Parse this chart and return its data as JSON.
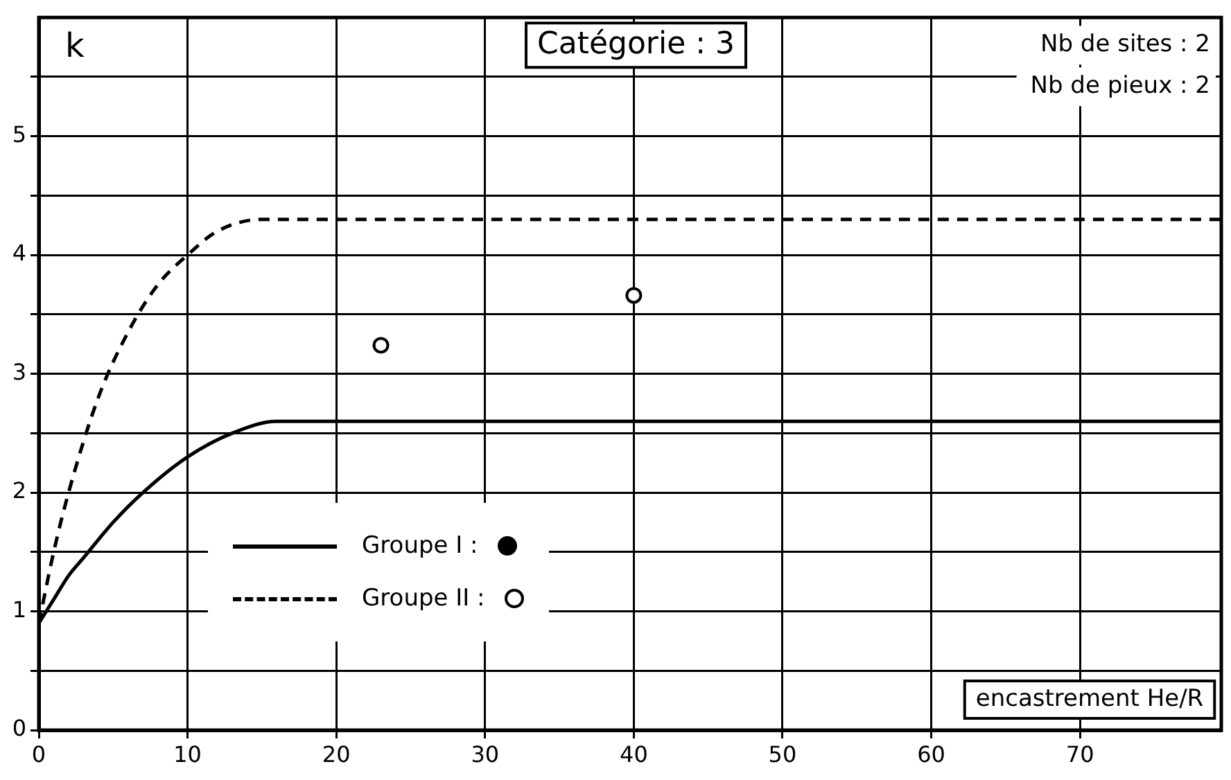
{
  "chart_data": {
    "type": "line",
    "title": "Catégorie : 3",
    "ylabel": "k",
    "xlabel": "encastrement He/R",
    "annotations": [
      "Nb de sites : 2",
      "Nb de pieux : 2"
    ],
    "xlim": [
      0,
      79.5
    ],
    "xticks": [
      0,
      10,
      20,
      30,
      40,
      50,
      60,
      70
    ],
    "ylim": [
      0,
      6
    ],
    "yticks": [
      0,
      {
        "value": 0.5,
        "label": null
      },
      1,
      {
        "value": 1.5,
        "label": null
      },
      2,
      {
        "value": 2.5,
        "label": null
      },
      3,
      {
        "value": 3.5,
        "label": null
      },
      4,
      {
        "value": 4.5,
        "label": null
      },
      5,
      {
        "value": 5.5,
        "label": null
      }
    ],
    "grid": true,
    "legend": "bottom left",
    "series": [
      {
        "name": "Groupe I :",
        "color": "#000000",
        "line_style": "solid",
        "marker": "none",
        "x": [
          0,
          1,
          2,
          3,
          5,
          7,
          10,
          13,
          16,
          79.5
        ],
        "values": [
          0.9,
          1.1,
          1.3,
          1.45,
          1.75,
          2.0,
          2.3,
          2.5,
          2.6,
          2.6
        ]
      },
      {
        "name": "Groupe II :",
        "color": "#000000",
        "line_style": "dashed",
        "marker": "none",
        "x": [
          0,
          1,
          2,
          4,
          6,
          8,
          10,
          12,
          15,
          79.5
        ],
        "values": [
          0.9,
          1.5,
          2.0,
          2.8,
          3.35,
          3.75,
          4.0,
          4.2,
          4.3,
          4.3
        ]
      },
      {
        "type": "scatter",
        "color": "#000000",
        "marker": "circle",
        "x": [
          23,
          40
        ],
        "values": [
          3.24,
          3.66
        ]
      }
    ]
  }
}
